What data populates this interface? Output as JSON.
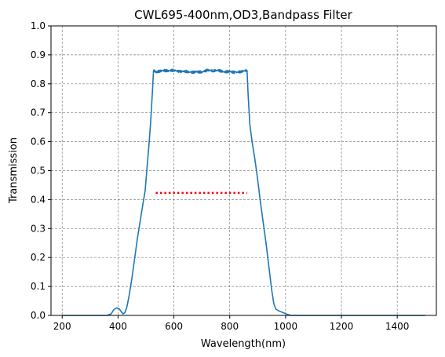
{
  "chart_data": {
    "type": "line",
    "title": "CWL695-400nm,OD3,Bandpass Filter",
    "xlabel": "Wavelength(nm)",
    "ylabel": "Transmission",
    "xlim": [
      160,
      1540
    ],
    "ylim": [
      0,
      1
    ],
    "xticks": [
      200,
      400,
      600,
      800,
      1000,
      1200,
      1400
    ],
    "yticks": [
      0.0,
      0.1,
      0.2,
      0.3,
      0.4,
      0.5,
      0.6,
      0.7,
      0.8,
      0.9,
      1.0
    ],
    "ytick_labels": [
      "0.0",
      "0.1",
      "0.2",
      "0.3",
      "0.4",
      "0.5",
      "0.6",
      "0.7",
      "0.8",
      "0.9",
      "1.0"
    ],
    "grid": true,
    "grid_style": "dashed",
    "series": [
      {
        "color": "#1f77b4",
        "style": "solid",
        "points": [
          [
            200,
            0.0
          ],
          [
            360,
            0.0
          ],
          [
            375,
            0.005
          ],
          [
            385,
            0.02
          ],
          [
            395,
            0.026
          ],
          [
            405,
            0.022
          ],
          [
            412,
            0.012
          ],
          [
            418,
            0.005
          ],
          [
            425,
            0.01
          ],
          [
            432,
            0.03
          ],
          [
            440,
            0.07
          ],
          [
            450,
            0.13
          ],
          [
            460,
            0.2
          ],
          [
            470,
            0.27
          ],
          [
            480,
            0.33
          ],
          [
            490,
            0.39
          ],
          [
            497,
            0.43
          ],
          [
            503,
            0.5
          ],
          [
            510,
            0.58
          ],
          [
            517,
            0.67
          ],
          [
            523,
            0.77
          ],
          [
            527,
            0.845
          ],
          [
            540,
            0.843
          ],
          [
            560,
            0.845
          ],
          [
            580,
            0.842
          ],
          [
            600,
            0.844
          ],
          [
            620,
            0.841
          ],
          [
            640,
            0.845
          ],
          [
            660,
            0.842
          ],
          [
            680,
            0.844
          ],
          [
            700,
            0.841
          ],
          [
            720,
            0.845
          ],
          [
            740,
            0.842
          ],
          [
            760,
            0.844
          ],
          [
            780,
            0.841
          ],
          [
            800,
            0.845
          ],
          [
            820,
            0.842
          ],
          [
            840,
            0.844
          ],
          [
            862,
            0.846
          ],
          [
            866,
            0.76
          ],
          [
            872,
            0.66
          ],
          [
            880,
            0.6
          ],
          [
            890,
            0.54
          ],
          [
            900,
            0.47
          ],
          [
            910,
            0.39
          ],
          [
            920,
            0.32
          ],
          [
            930,
            0.25
          ],
          [
            940,
            0.17
          ],
          [
            950,
            0.09
          ],
          [
            958,
            0.04
          ],
          [
            965,
            0.022
          ],
          [
            975,
            0.016
          ],
          [
            990,
            0.01
          ],
          [
            1005,
            0.004
          ],
          [
            1020,
            0.0
          ],
          [
            1500,
            0.0
          ]
        ]
      },
      {
        "color": "#ff0000",
        "style": "dotted",
        "points": [
          [
            535,
            0.423
          ],
          [
            862,
            0.423
          ]
        ]
      }
    ]
  }
}
